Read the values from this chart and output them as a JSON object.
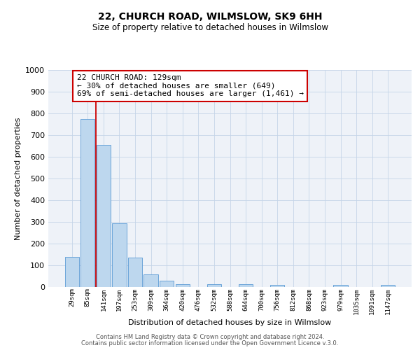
{
  "title": "22, CHURCH ROAD, WILMSLOW, SK9 6HH",
  "subtitle": "Size of property relative to detached houses in Wilmslow",
  "xlabel": "Distribution of detached houses by size in Wilmslow",
  "ylabel": "Number of detached properties",
  "bar_labels": [
    "29sqm",
    "85sqm",
    "141sqm",
    "197sqm",
    "253sqm",
    "309sqm",
    "364sqm",
    "420sqm",
    "476sqm",
    "532sqm",
    "588sqm",
    "644sqm",
    "700sqm",
    "756sqm",
    "812sqm",
    "868sqm",
    "923sqm",
    "979sqm",
    "1035sqm",
    "1091sqm",
    "1147sqm"
  ],
  "bar_values": [
    140,
    775,
    655,
    295,
    135,
    57,
    30,
    14,
    0,
    14,
    0,
    13,
    0,
    11,
    0,
    0,
    0,
    11,
    0,
    0,
    11
  ],
  "bar_color": "#bdd7ee",
  "bar_edge_color": "#5b9bd5",
  "grid_color": "#c5d5e8",
  "bg_color": "#eef2f8",
  "annotation_text": "22 CHURCH ROAD: 129sqm\n← 30% of detached houses are smaller (649)\n69% of semi-detached houses are larger (1,461) →",
  "annotation_box_color": "#ffffff",
  "annotation_box_edge": "#cc0000",
  "ylim": [
    0,
    1000
  ],
  "yticks": [
    0,
    100,
    200,
    300,
    400,
    500,
    600,
    700,
    800,
    900,
    1000
  ],
  "footer_line1": "Contains HM Land Registry data © Crown copyright and database right 2024.",
  "footer_line2": "Contains public sector information licensed under the Open Government Licence v.3.0."
}
